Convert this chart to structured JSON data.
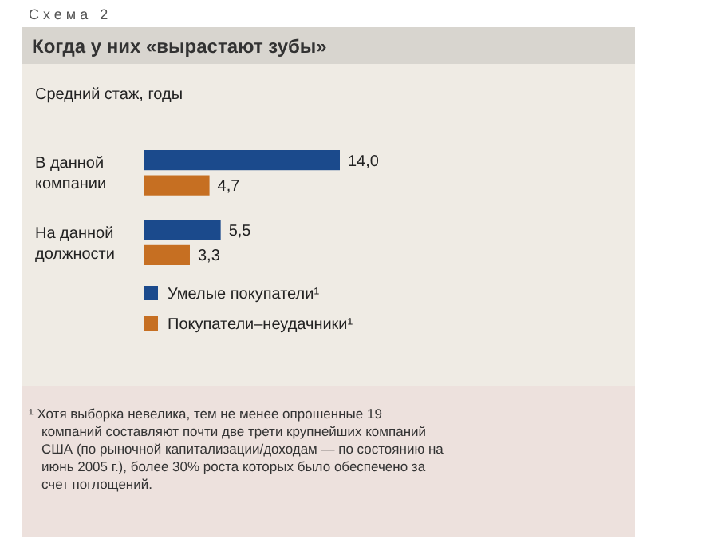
{
  "chart_data": {
    "type": "bar",
    "orientation": "horizontal",
    "title": "Когда у них «вырастают зубы»",
    "subtitle": "Средний стаж, годы",
    "categories": [
      "В данной компании",
      "На данной должности"
    ],
    "series": [
      {
        "name": "Умелые покупатели¹",
        "color": "#1b4a8c",
        "values": [
          14.0,
          5.5
        ],
        "value_labels": [
          "14,0",
          "5,5"
        ]
      },
      {
        "name": "Покупатели–неудачники¹",
        "color": "#c66f22",
        "values": [
          4.7,
          3.3
        ],
        "value_labels": [
          "4,7",
          "3,3"
        ]
      }
    ],
    "legend": "bottom left",
    "grid": false,
    "annotations": [
      "Схема 2",
      "¹ Хотя выборка невелика, тем не менее опрошенные 19 компаний составляют почти две трети крупнейших компаний США (по рыночной капитализации/доходам — по состоянию на июнь 2005 г.), более 30% роста которых было обеспечено за счет поглощений."
    ]
  }
}
